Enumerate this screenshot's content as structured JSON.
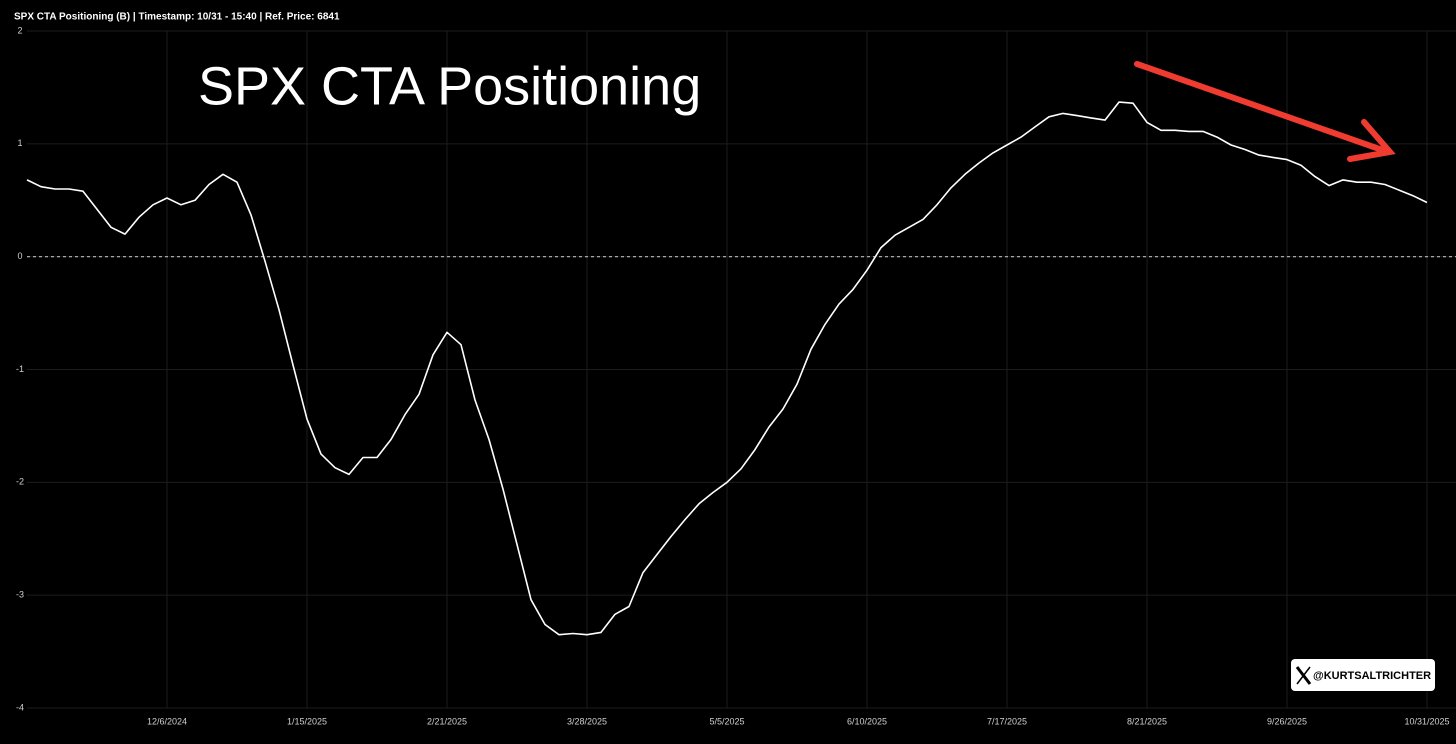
{
  "chart_data": {
    "type": "line",
    "header": "SPX CTA Positioning (B) | Timestamp: 10/31 - 15:40  | Ref. Price: 6841",
    "title": "SPX CTA Positioning",
    "watermark": "@KURTSALTRICHTER",
    "categories": [
      null,
      null,
      null,
      null,
      null,
      null,
      null,
      null,
      null,
      null,
      "12/6/2024",
      null,
      null,
      null,
      null,
      null,
      null,
      null,
      null,
      null,
      "1/15/2025",
      null,
      null,
      null,
      null,
      null,
      null,
      null,
      null,
      null,
      "2/21/2025",
      null,
      null,
      null,
      null,
      null,
      null,
      null,
      null,
      null,
      "3/28/2025",
      null,
      null,
      null,
      null,
      null,
      null,
      null,
      null,
      null,
      "5/5/2025",
      null,
      null,
      null,
      null,
      null,
      null,
      null,
      null,
      null,
      "6/10/2025",
      null,
      null,
      null,
      null,
      null,
      null,
      null,
      null,
      null,
      "7/17/2025",
      null,
      null,
      null,
      null,
      null,
      null,
      null,
      null,
      null,
      "8/21/2025",
      null,
      null,
      null,
      null,
      null,
      null,
      null,
      null,
      null,
      "9/26/2025",
      null,
      null,
      null,
      null,
      null,
      null,
      null,
      null,
      null,
      "10/31/2025"
    ],
    "series": [
      {
        "color": "#ffffff",
        "values": [
          0.68,
          0.62,
          0.6,
          0.6,
          0.58,
          0.42,
          0.26,
          0.2,
          0.35,
          0.46,
          0.52,
          0.46,
          0.5,
          0.64,
          0.73,
          0.66,
          0.37,
          -0.04,
          -0.47,
          -0.96,
          -1.44,
          -1.75,
          -1.87,
          -1.93,
          -1.78,
          -1.78,
          -1.62,
          -1.4,
          -1.22,
          -0.87,
          -0.67,
          -0.78,
          -1.27,
          -1.62,
          -2.06,
          -2.55,
          -3.04,
          -3.26,
          -3.35,
          -3.34,
          -3.35,
          -3.33,
          -3.17,
          -3.1,
          -2.8,
          -2.64,
          -2.48,
          -2.33,
          -2.19,
          -2.09,
          -2.0,
          -1.88,
          -1.71,
          -1.51,
          -1.35,
          -1.13,
          -0.82,
          -0.6,
          -0.42,
          -0.29,
          -0.12,
          0.08,
          0.19,
          0.26,
          0.33,
          0.46,
          0.61,
          0.73,
          0.83,
          0.92,
          0.99,
          1.06,
          1.15,
          1.24,
          1.27,
          1.25,
          1.23,
          1.21,
          1.37,
          1.36,
          1.19,
          1.12,
          1.12,
          1.11,
          1.11,
          1.06,
          0.99,
          0.95,
          0.9,
          0.88,
          0.86,
          0.81,
          0.71,
          0.63,
          0.68,
          0.66,
          0.66,
          0.64,
          0.59,
          0.54,
          0.48
        ]
      }
    ],
    "ylim": [
      -4,
      2
    ],
    "yticks": [
      -4,
      -3,
      -2,
      -1,
      0,
      1,
      2
    ],
    "reference_line": 0,
    "grid": true
  }
}
